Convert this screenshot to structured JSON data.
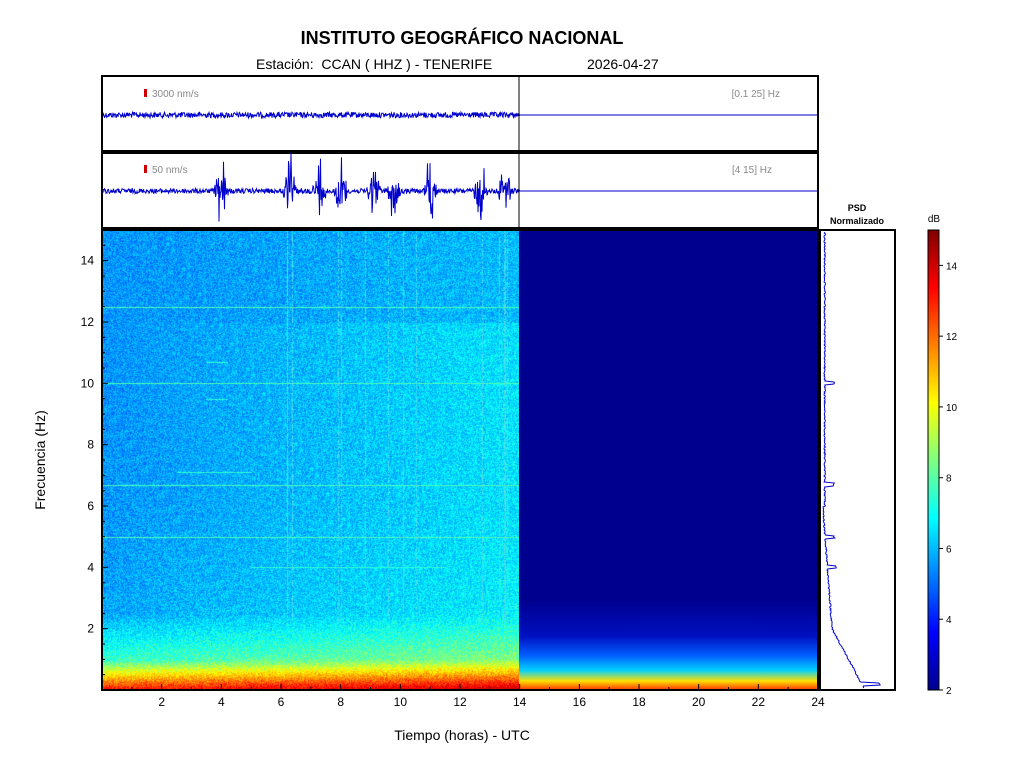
{
  "header": {
    "title": "INSTITUTO GEOGRÁFICO NACIONAL",
    "station_line": "Estación:  CCAN ( HHZ ) - TENERIFE",
    "date": "2026-04-27"
  },
  "colors": {
    "trace": "#0000cc",
    "axis": "#000000",
    "scale_bar": "#cc0000",
    "empty_spectrogram": "#00008f"
  },
  "chart_data": [
    {
      "type": "line",
      "name": "seismogram-broadband",
      "scale_label": "3000 nm/s",
      "band_label": "[0.1 25] Hz",
      "x_range": [
        0,
        24
      ],
      "data_until": 14,
      "relative_amplitude": 0.35
    },
    {
      "type": "line",
      "name": "seismogram-filtered",
      "scale_label": "50 nm/s",
      "band_label": "[4 15] Hz",
      "x_range": [
        0,
        24
      ],
      "data_until": 14,
      "relative_amplitude": 0.3,
      "bursts_hours": [
        4.0,
        6.3,
        7.3,
        8.0,
        9.1,
        9.8,
        11.0,
        12.7,
        13.5
      ]
    },
    {
      "type": "heatmap",
      "name": "spectrogram",
      "xlabel": "Tiempo (horas) - UTC",
      "ylabel": "Frecuencia  (Hz)",
      "xlim": [
        0,
        24
      ],
      "ylim": [
        0,
        15
      ],
      "x_ticks": [
        2,
        4,
        6,
        8,
        10,
        12,
        14,
        16,
        18,
        20,
        22,
        24
      ],
      "y_ticks": [
        2,
        4,
        6,
        8,
        10,
        12,
        14
      ],
      "data_until": 14,
      "noise_lines_hz": [
        5.0,
        6.7,
        10.0,
        12.5
      ],
      "short_lines": [
        {
          "hz": 7.1,
          "from": 2.5,
          "to": 5.0
        },
        {
          "hz": 4.0,
          "from": 5.0,
          "to": 11.5
        },
        {
          "hz": 10.7,
          "from": 3.5,
          "to": 4.2
        },
        {
          "hz": 9.5,
          "from": 3.5,
          "to": 4.2
        }
      ]
    },
    {
      "type": "line",
      "name": "psd",
      "title_line1": "PSD",
      "title_line2": "Normalizado",
      "ylim": [
        0,
        15
      ],
      "peaks_hz": [
        0.2,
        4.0,
        5.0,
        6.7,
        10.0
      ]
    },
    {
      "type": "heatmap",
      "name": "colorbar",
      "unit": "dB",
      "range": [
        2,
        15
      ],
      "ticks": [
        2,
        4,
        6,
        8,
        10,
        12,
        14
      ]
    }
  ]
}
